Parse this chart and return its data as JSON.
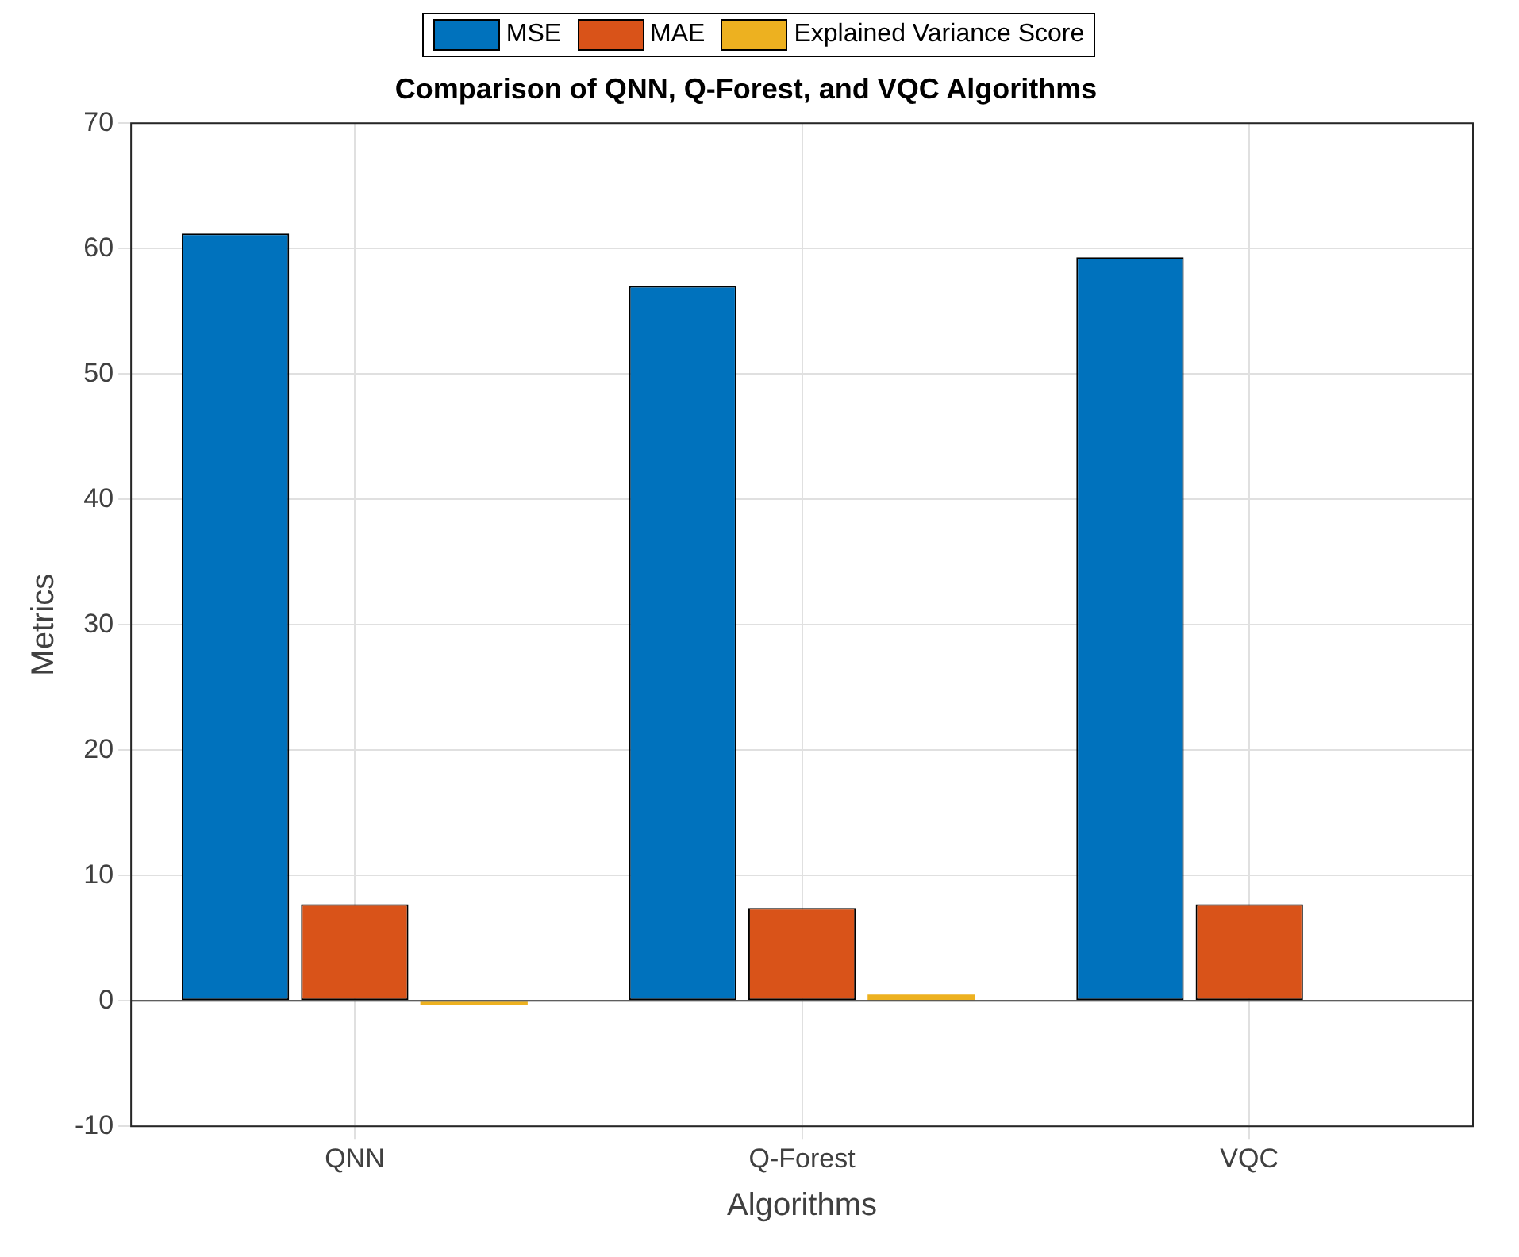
{
  "chart_data": {
    "type": "bar",
    "title": "Comparison of QNN, Q-Forest, and VQC Algorithms",
    "xlabel": "Algorithms",
    "ylabel": "Metrics",
    "categories": [
      "QNN",
      "Q-Forest",
      "VQC"
    ],
    "series": [
      {
        "name": "MSE",
        "color": "#0072bd",
        "values": [
          61.2,
          57.0,
          59.3
        ]
      },
      {
        "name": "MAE",
        "color": "#d95319",
        "values": [
          7.7,
          7.4,
          7.7
        ]
      },
      {
        "name": "Explained Variance Score",
        "color": "#edb120",
        "values": [
          -0.3,
          0.5,
          0.0
        ]
      }
    ],
    "ylim": [
      -10,
      70
    ],
    "yticks": [
      -10,
      0,
      10,
      20,
      30,
      40,
      50,
      60,
      70
    ],
    "grid": true,
    "legend": "top"
  }
}
